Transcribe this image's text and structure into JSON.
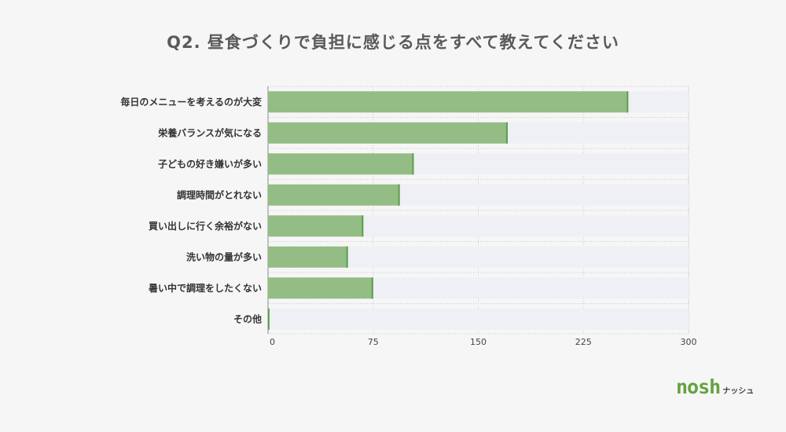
{
  "chart_data": {
    "type": "bar",
    "orientation": "horizontal",
    "title": "Q2. 昼食づくりで負担に感じる点をすべて教えてください",
    "categories": [
      "毎日のメニューを考えるのが大変",
      "栄養バランスが気になる",
      "子どもの好き嫌いが多い",
      "調理時間がとれない",
      "買い出しに行く余裕がない",
      "洗い物の量が多い",
      "暑い中で調理をしたくない",
      "その他"
    ],
    "values": [
      257,
      171,
      104,
      94,
      68,
      57,
      75,
      1
    ],
    "xlim": [
      0,
      300
    ],
    "xticks": [
      "0",
      "75",
      "150",
      "225",
      "300"
    ],
    "grid": true,
    "colors": {
      "bar": "#93bd85",
      "bar_edge": "#5f9e4a",
      "track": "#eef0f5",
      "grid": "#c8c8c8"
    }
  },
  "brand": {
    "name": "nosh",
    "sub": "ナッシュ"
  }
}
